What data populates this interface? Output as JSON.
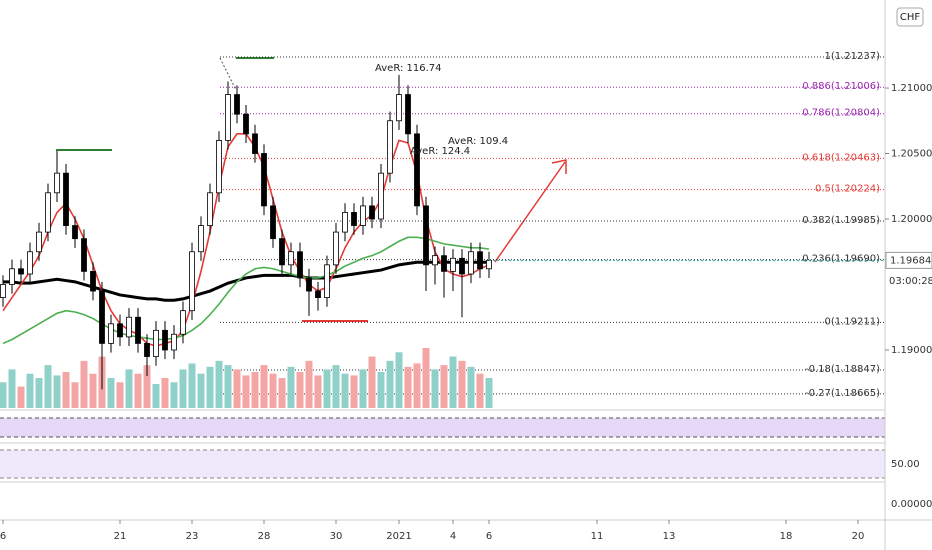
{
  "chart_data": {
    "type": "candlestick",
    "currency_badge": "CHF",
    "up_color": "#ffffff",
    "down_color": "#000000",
    "x": [
      0,
      1,
      2,
      3,
      4,
      5,
      6,
      7,
      8,
      9,
      10,
      11,
      12,
      13,
      14,
      15,
      16,
      17,
      18,
      19,
      20,
      21,
      22,
      23,
      24,
      25,
      26,
      27,
      28,
      29,
      30,
      31,
      32,
      33,
      34,
      35,
      36,
      37,
      38,
      39,
      40,
      41,
      42,
      43,
      44,
      45,
      46,
      47,
      48,
      49,
      50,
      51,
      52,
      53,
      54
    ],
    "open": [
      1.194,
      1.195,
      1.1962,
      1.1958,
      1.1975,
      1.199,
      1.202,
      1.2035,
      1.1995,
      1.1985,
      1.196,
      1.1945,
      1.1905,
      1.192,
      1.191,
      1.1925,
      1.1905,
      1.1895,
      1.1915,
      1.19,
      1.1912,
      1.193,
      1.1975,
      1.1995,
      1.202,
      1.206,
      1.2095,
      1.208,
      1.2065,
      1.205,
      1.201,
      1.1985,
      1.1965,
      1.1975,
      1.1955,
      1.1945,
      1.194,
      1.1965,
      1.199,
      1.2005,
      1.1995,
      1.201,
      1.2,
      1.2035,
      1.2075,
      1.2095,
      1.2065,
      1.201,
      1.1965,
      1.1972,
      1.196,
      1.197,
      1.1958,
      1.1975,
      1.1962
    ],
    "high": [
      1.1957,
      1.1969,
      1.1969,
      1.1982,
      1.1997,
      1.2027,
      1.2052,
      1.2042,
      1.2002,
      1.1992,
      1.1967,
      1.1952,
      1.1927,
      1.1927,
      1.1932,
      1.1932,
      1.1912,
      1.1922,
      1.1922,
      1.1919,
      1.1937,
      1.1982,
      1.2002,
      1.2027,
      1.2067,
      1.2105,
      1.2102,
      1.2087,
      1.2072,
      1.2057,
      1.2017,
      1.1992,
      1.1982,
      1.1982,
      1.1962,
      1.1952,
      1.1972,
      1.1997,
      1.2012,
      1.2012,
      1.2017,
      1.2017,
      1.2042,
      1.2082,
      1.211,
      1.2102,
      1.2072,
      1.2017,
      1.1979,
      1.1979,
      1.1977,
      1.1977,
      1.1982,
      1.1982,
      1.1975
    ],
    "low": [
      1.1933,
      1.1943,
      1.1951,
      1.1951,
      1.1968,
      1.1983,
      1.2013,
      1.1988,
      1.1978,
      1.1953,
      1.1938,
      1.187,
      1.1898,
      1.1903,
      1.1903,
      1.1898,
      1.188,
      1.1888,
      1.1893,
      1.1893,
      1.1905,
      1.1923,
      1.1968,
      1.1988,
      1.2013,
      1.2053,
      1.2073,
      1.2058,
      1.2043,
      1.2003,
      1.1978,
      1.1958,
      1.1958,
      1.1948,
      1.1926,
      1.193,
      1.1933,
      1.1958,
      1.1983,
      1.1988,
      1.1988,
      1.1993,
      1.1993,
      1.2028,
      1.2068,
      1.2058,
      1.2003,
      1.1945,
      1.195,
      1.194,
      1.1945,
      1.1925,
      1.1951,
      1.1955,
      1.1955
    ],
    "close": [
      1.195,
      1.1962,
      1.1958,
      1.1975,
      1.199,
      1.202,
      1.2035,
      1.1995,
      1.1985,
      1.196,
      1.1945,
      1.1905,
      1.192,
      1.191,
      1.1925,
      1.1905,
      1.1895,
      1.1915,
      1.19,
      1.1912,
      1.193,
      1.1975,
      1.1995,
      1.202,
      1.206,
      1.2095,
      1.208,
      1.2065,
      1.205,
      1.201,
      1.1985,
      1.1965,
      1.1975,
      1.1955,
      1.1945,
      1.194,
      1.1965,
      1.199,
      1.2005,
      1.1995,
      1.201,
      1.2,
      1.2035,
      1.2075,
      1.2095,
      1.2065,
      1.201,
      1.1965,
      1.1972,
      1.196,
      1.197,
      1.1958,
      1.1975,
      1.1962,
      1.19684
    ],
    "volume": [
      30,
      45,
      25,
      40,
      35,
      50,
      38,
      42,
      30,
      55,
      40,
      60,
      35,
      30,
      45,
      40,
      50,
      28,
      35,
      30,
      45,
      52,
      40,
      48,
      55,
      50,
      45,
      38,
      42,
      50,
      40,
      35,
      48,
      42,
      55,
      38,
      45,
      50,
      40,
      38,
      45,
      60,
      42,
      55,
      65,
      48,
      52,
      70,
      45,
      50,
      60,
      55,
      48,
      40,
      35
    ],
    "series": [
      {
        "color": "#000000",
        "values": [
          1.1952,
          1.1952,
          1.1951,
          1.1951,
          1.1952,
          1.1953,
          1.1954,
          1.1953,
          1.1952,
          1.195,
          1.1948,
          1.1946,
          1.1944,
          1.1942,
          1.1941,
          1.194,
          1.1939,
          1.1939,
          1.1938,
          1.1938,
          1.1939,
          1.1941,
          1.1943,
          1.1945,
          1.1948,
          1.1951,
          1.1953,
          1.1955,
          1.1956,
          1.1957,
          1.1957,
          1.1957,
          1.1957,
          1.1956,
          1.1955,
          1.1955,
          1.1955,
          1.1956,
          1.1957,
          1.1958,
          1.1959,
          1.196,
          1.1961,
          1.1963,
          1.1965,
          1.1966,
          1.1967,
          1.1967,
          1.1967,
          1.1967,
          1.1967,
          1.1967,
          1.1967,
          1.1967,
          1.1967
        ]
      },
      {
        "color": "#e53935",
        "values": [
          1.193,
          1.194,
          1.195,
          1.196,
          1.1972,
          1.199,
          1.2005,
          1.2012,
          1.2,
          1.1985,
          1.1965,
          1.1945,
          1.193,
          1.192,
          1.1915,
          1.1912,
          1.1905,
          1.1903,
          1.1905,
          1.1907,
          1.1915,
          1.1935,
          1.196,
          1.199,
          1.2025,
          1.2055,
          1.2065,
          1.2065,
          1.2055,
          1.204,
          1.2015,
          1.199,
          1.1972,
          1.196,
          1.195,
          1.1945,
          1.1948,
          1.1962,
          1.1978,
          1.199,
          1.1998,
          1.2003,
          1.2015,
          1.204,
          1.206,
          1.2058,
          1.2035,
          1.2,
          1.1975,
          1.1962,
          1.1958,
          1.1956,
          1.1958,
          1.1962,
          1.1965
        ]
      },
      {
        "color": "#4caf50",
        "values": [
          1.1905,
          1.1908,
          1.1912,
          1.1916,
          1.192,
          1.1924,
          1.1928,
          1.193,
          1.1929,
          1.1927,
          1.1924,
          1.192,
          1.1916,
          1.1913,
          1.1911,
          1.191,
          1.1909,
          1.1908,
          1.1908,
          1.1909,
          1.1911,
          1.1915,
          1.192,
          1.1927,
          1.1935,
          1.1944,
          1.1952,
          1.1958,
          1.1962,
          1.1963,
          1.1962,
          1.196,
          1.1958,
          1.1956,
          1.1955,
          1.1955,
          1.1957,
          1.196,
          1.1964,
          1.1967,
          1.197,
          1.1972,
          1.1975,
          1.1979,
          1.1983,
          1.1986,
          1.1986,
          1.1985,
          1.1983,
          1.1981,
          1.198,
          1.1979,
          1.1978,
          1.1978,
          1.1977
        ]
      }
    ],
    "fib_levels": [
      {
        "label": "1(1.21237)",
        "value": 1.21237,
        "color": "#333333"
      },
      {
        "label": "0.886(1.21006)",
        "value": 1.21006,
        "color": "#9c27b0"
      },
      {
        "label": "0.786(1.20804)",
        "value": 1.20804,
        "color": "#9c27b0"
      },
      {
        "label": "0.618(1.20463)",
        "value": 1.20463,
        "color": "#e53935"
      },
      {
        "label": "0.5(1.20224)",
        "value": 1.20224,
        "color": "#e53935"
      },
      {
        "label": "0.382(1.19985)",
        "value": 1.19985,
        "color": "#333333"
      },
      {
        "label": "0.236(1.19690)",
        "value": 1.1969,
        "color": "#333333"
      },
      {
        "label": "0(1.19211)",
        "value": 1.19211,
        "color": "#333333"
      },
      {
        "label": "-0.18(1.18847)",
        "value": 1.18847,
        "color": "#333333"
      },
      {
        "label": "-0.27(1.18665)",
        "value": 1.18665,
        "color": "#333333"
      }
    ],
    "annotations": [
      "AveR: 116.74",
      "AveR: 124.4",
      "AveR: 109.4"
    ],
    "current_price": {
      "value": 1.19684,
      "label": "1.19684"
    },
    "countdown": "03:00:28",
    "ylim": [
      1.18557,
      1.21672
    ],
    "yticks": [
      {
        "value": 1.19,
        "label": "1.19000"
      },
      {
        "value": 1.2,
        "label": "1.20000"
      },
      {
        "value": 1.205,
        "label": "1.20500"
      },
      {
        "value": 1.21,
        "label": "1.21000"
      }
    ],
    "xlim": [
      0,
      98
    ],
    "xticks": [
      {
        "value": 0,
        "label": "6"
      },
      {
        "value": 13,
        "label": "21"
      },
      {
        "value": 21,
        "label": "23"
      },
      {
        "value": 29,
        "label": "28"
      },
      {
        "value": 37,
        "label": "30"
      },
      {
        "value": 44,
        "label": "2021"
      },
      {
        "value": 50,
        "label": "4"
      },
      {
        "value": 54,
        "label": "6"
      },
      {
        "value": 66,
        "label": "11"
      },
      {
        "value": 74,
        "label": "13"
      },
      {
        "value": 87,
        "label": "18"
      },
      {
        "value": 95,
        "label": "20"
      }
    ],
    "rsi_label": "50.00",
    "macd_label": "0.00000"
  }
}
